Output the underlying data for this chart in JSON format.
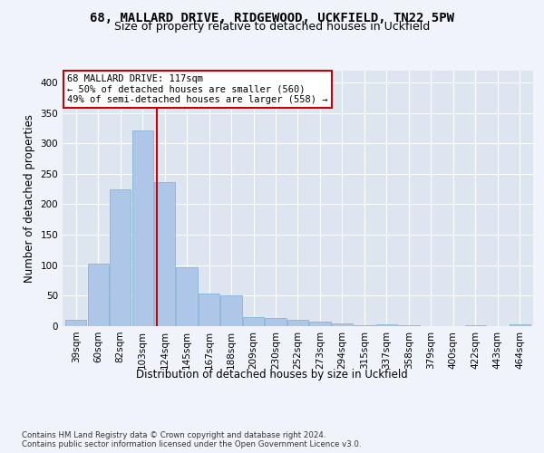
{
  "title1": "68, MALLARD DRIVE, RIDGEWOOD, UCKFIELD, TN22 5PW",
  "title2": "Size of property relative to detached houses in Uckfield",
  "xlabel": "Distribution of detached houses by size in Uckfield",
  "ylabel": "Number of detached properties",
  "footnote": "Contains HM Land Registry data © Crown copyright and database right 2024.\nContains public sector information licensed under the Open Government Licence v3.0.",
  "categories": [
    "39sqm",
    "60sqm",
    "82sqm",
    "103sqm",
    "124sqm",
    "145sqm",
    "167sqm",
    "188sqm",
    "209sqm",
    "230sqm",
    "252sqm",
    "273sqm",
    "294sqm",
    "315sqm",
    "337sqm",
    "358sqm",
    "379sqm",
    "400sqm",
    "422sqm",
    "443sqm",
    "464sqm"
  ],
  "values": [
    10,
    102,
    224,
    321,
    237,
    96,
    54,
    51,
    15,
    14,
    11,
    7,
    4,
    2,
    3,
    1,
    0,
    0,
    2,
    0,
    3
  ],
  "bar_color": "#aec6e8",
  "bar_edge_color": "#7aafd4",
  "property_line_label": "68 MALLARD DRIVE: 117sqm",
  "annotation_line1": "← 50% of detached houses are smaller (560)",
  "annotation_line2": "49% of semi-detached houses are larger (558) →",
  "annotation_box_color": "#ffffff",
  "annotation_box_edge_color": "#cc0000",
  "vline_color": "#cc0000",
  "ylim": [
    0,
    420
  ],
  "plot_bg": "#dde5f0",
  "fig_bg": "#f0f4fa",
  "grid_color": "#ffffff",
  "title_fontsize": 10,
  "subtitle_fontsize": 9,
  "tick_label_fontsize": 7.5,
  "axis_label_fontsize": 8.5,
  "annot_fontsize": 7.5
}
